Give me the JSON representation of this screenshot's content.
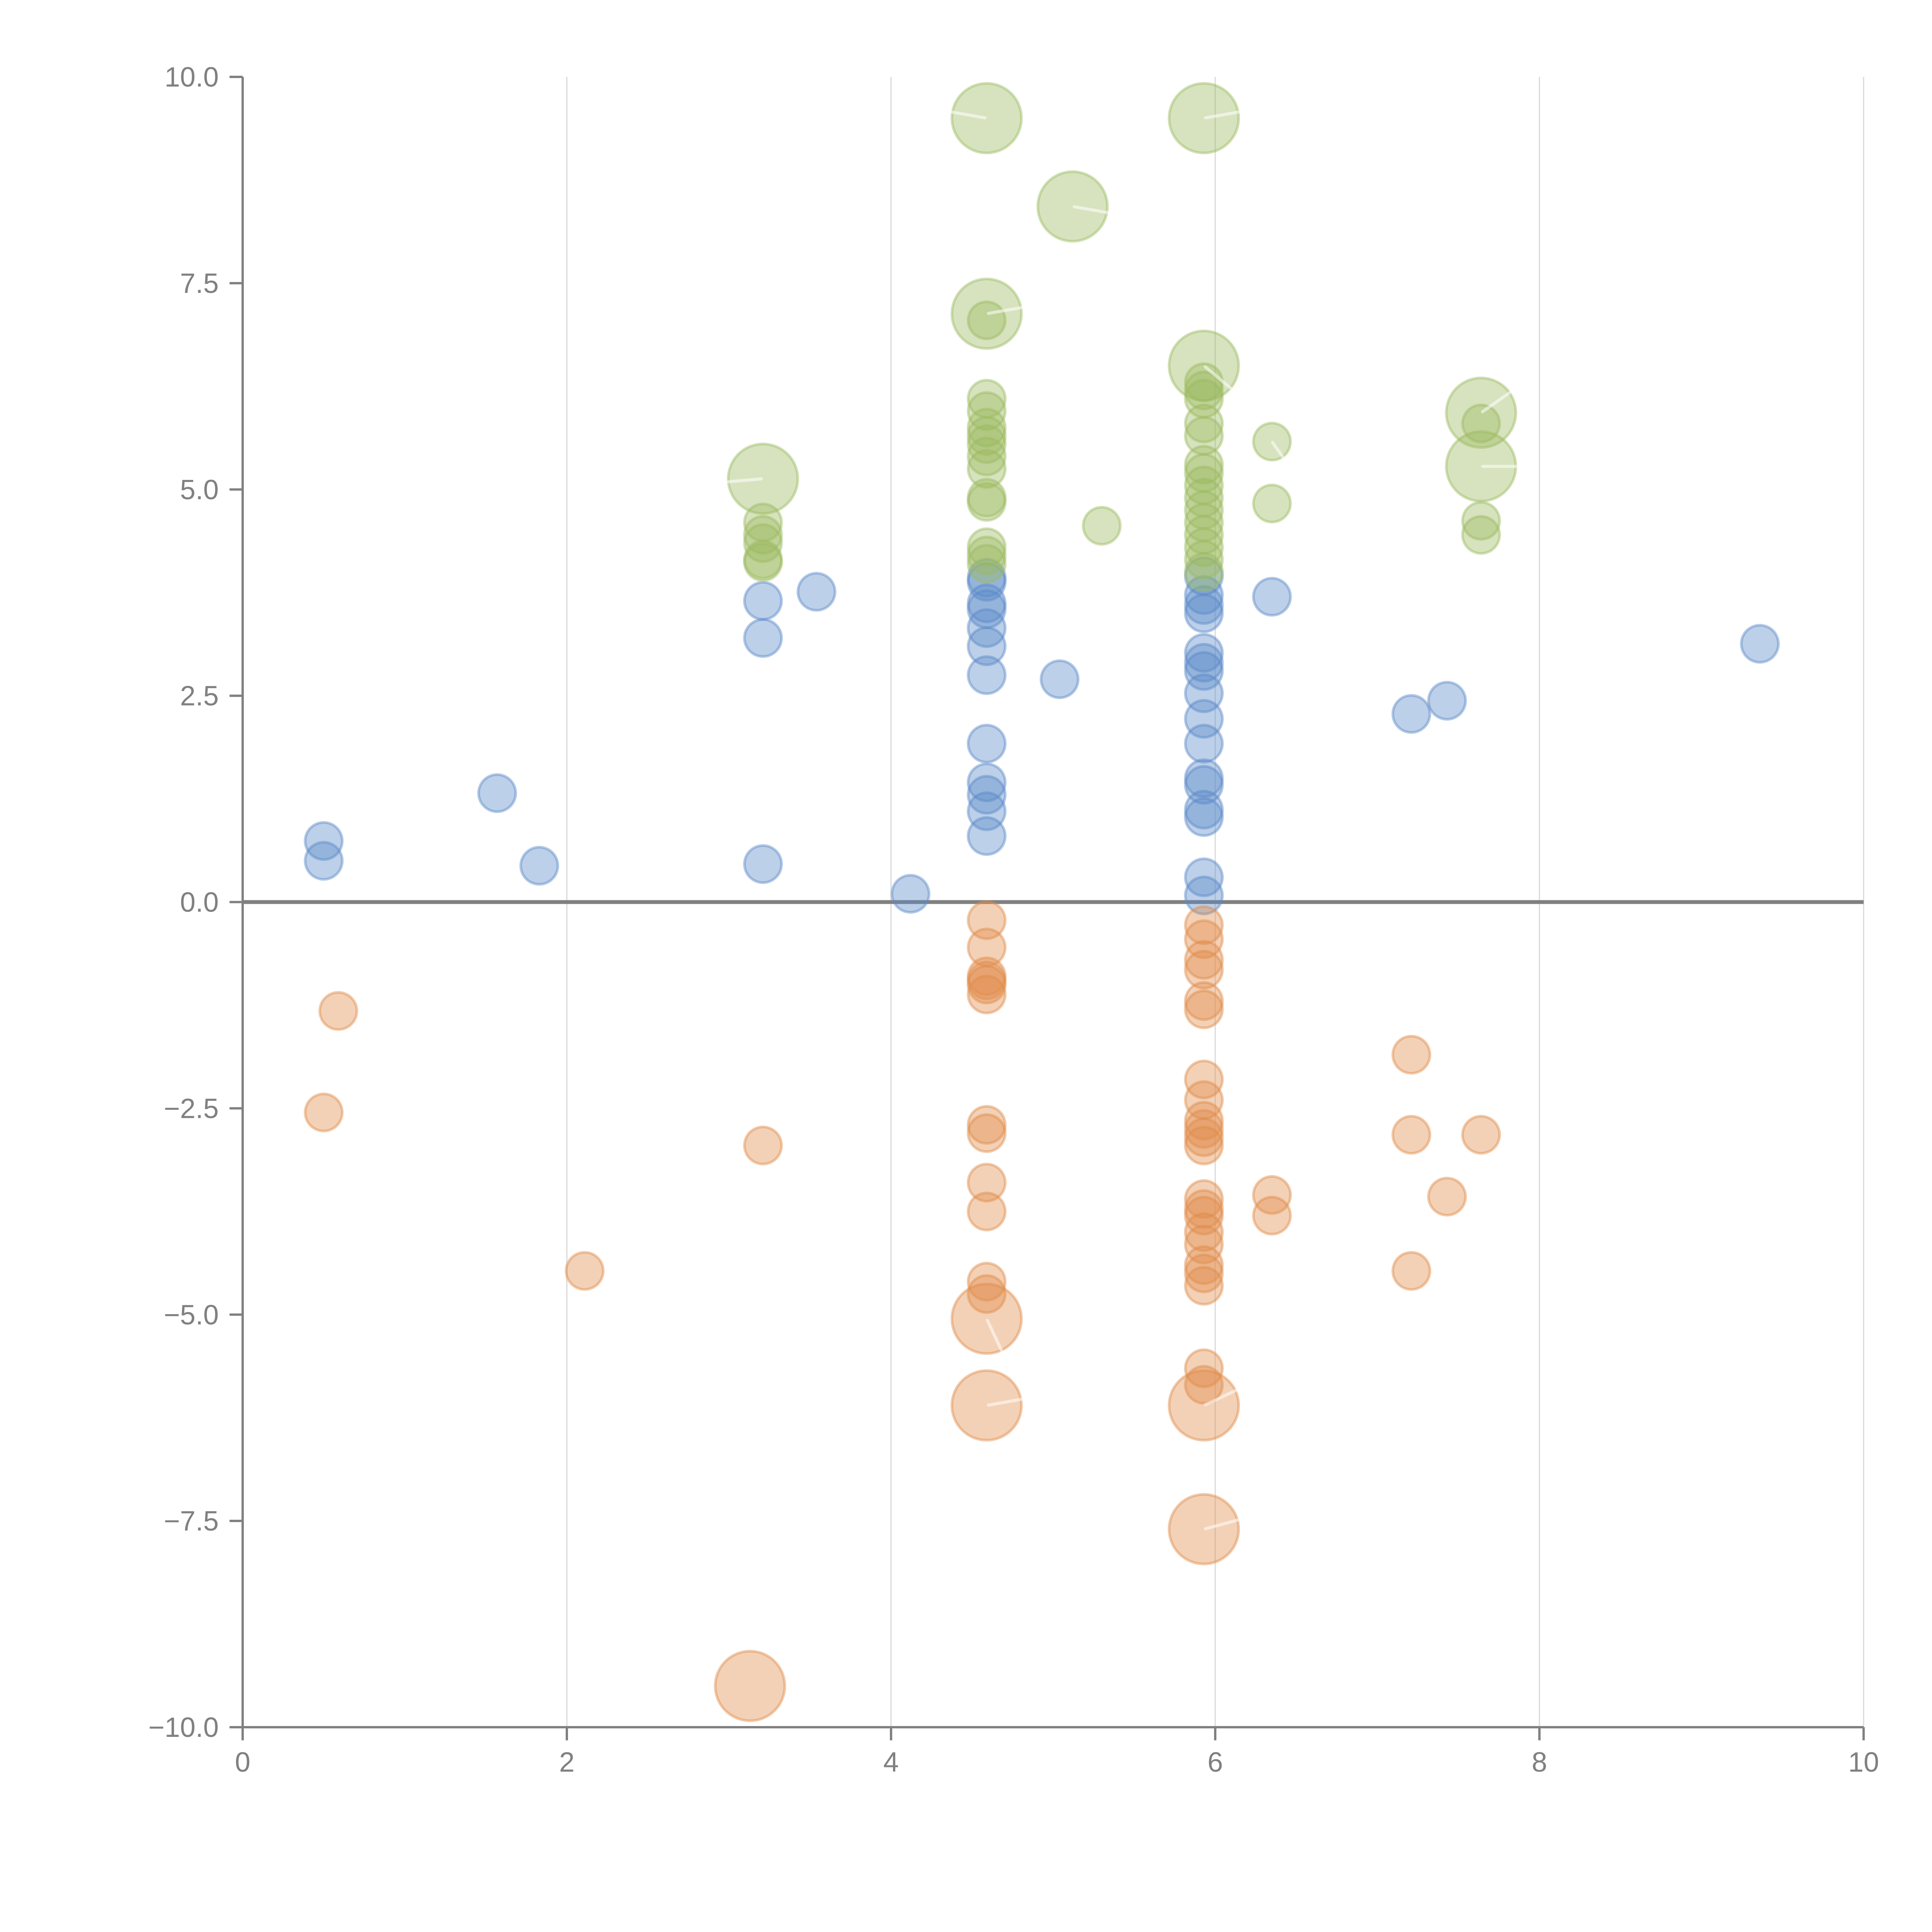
{
  "chart_data": {
    "type": "scatter",
    "variant": "bubble",
    "title": "",
    "xlabel": "",
    "ylabel": "",
    "xlim": [
      0,
      10
    ],
    "ylim": [
      -10,
      10
    ],
    "grid": "vertical",
    "legend": "none",
    "x_ticks": [
      "0",
      "2",
      "4",
      "6",
      "8",
      "10"
    ],
    "x_tick_values": [
      0,
      2,
      4,
      6,
      8,
      10
    ],
    "y_ticks": [
      "10.0",
      "7.5",
      "5.0",
      "2.5",
      "0.0",
      "−2.5",
      "−5.0",
      "−7.5",
      "−10.0"
    ],
    "y_tick_values": [
      10,
      7.5,
      5,
      2.5,
      0,
      -2.5,
      -5,
      -7.5,
      -10
    ],
    "reference_line_y": 0,
    "series": [
      {
        "name": "blue",
        "color": "#5b8ac7",
        "points": [
          {
            "x": 0.5,
            "y": 0.74,
            "size": 1
          },
          {
            "x": 0.5,
            "y": 0.5,
            "size": 1
          },
          {
            "x": 1.57,
            "y": 1.32,
            "size": 1
          },
          {
            "x": 1.83,
            "y": 0.44,
            "size": 1
          },
          {
            "x": 3.21,
            "y": 0.46,
            "size": 1
          },
          {
            "x": 3.21,
            "y": 3.2,
            "size": 1
          },
          {
            "x": 3.21,
            "y": 3.65,
            "size": 1
          },
          {
            "x": 3.54,
            "y": 3.76,
            "size": 1
          },
          {
            "x": 4.12,
            "y": 0.1,
            "size": 1
          },
          {
            "x": 4.59,
            "y": 0.8,
            "size": 1
          },
          {
            "x": 4.59,
            "y": 1.1,
            "size": 1
          },
          {
            "x": 4.59,
            "y": 1.3,
            "size": 1
          },
          {
            "x": 4.59,
            "y": 1.45,
            "size": 1
          },
          {
            "x": 4.59,
            "y": 1.92,
            "size": 1
          },
          {
            "x": 4.59,
            "y": 2.75,
            "size": 1
          },
          {
            "x": 4.59,
            "y": 3.1,
            "size": 1
          },
          {
            "x": 4.59,
            "y": 3.32,
            "size": 1
          },
          {
            "x": 4.59,
            "y": 3.55,
            "size": 1
          },
          {
            "x": 4.59,
            "y": 3.62,
            "size": 1
          },
          {
            "x": 4.59,
            "y": 3.88,
            "size": 1
          },
          {
            "x": 4.59,
            "y": 3.93,
            "size": 1
          },
          {
            "x": 5.04,
            "y": 2.7,
            "size": 1
          },
          {
            "x": 5.93,
            "y": 0.08,
            "size": 1
          },
          {
            "x": 5.93,
            "y": 0.3,
            "size": 1
          },
          {
            "x": 5.93,
            "y": 1.03,
            "size": 1
          },
          {
            "x": 5.93,
            "y": 1.12,
            "size": 1
          },
          {
            "x": 5.93,
            "y": 1.42,
            "size": 1
          },
          {
            "x": 5.93,
            "y": 1.5,
            "size": 1
          },
          {
            "x": 5.93,
            "y": 1.92,
            "size": 1
          },
          {
            "x": 5.93,
            "y": 2.22,
            "size": 1
          },
          {
            "x": 5.93,
            "y": 2.53,
            "size": 1
          },
          {
            "x": 5.93,
            "y": 2.8,
            "size": 1
          },
          {
            "x": 5.93,
            "y": 2.9,
            "size": 1
          },
          {
            "x": 5.93,
            "y": 3.02,
            "size": 1
          },
          {
            "x": 5.93,
            "y": 3.5,
            "size": 1
          },
          {
            "x": 5.93,
            "y": 3.6,
            "size": 1
          },
          {
            "x": 5.93,
            "y": 3.72,
            "size": 1
          },
          {
            "x": 5.93,
            "y": 3.95,
            "size": 1
          },
          {
            "x": 6.35,
            "y": 3.7,
            "size": 1
          },
          {
            "x": 7.21,
            "y": 2.28,
            "size": 1
          },
          {
            "x": 7.43,
            "y": 2.44,
            "size": 1
          },
          {
            "x": 9.36,
            "y": 3.13,
            "size": 1
          }
        ]
      },
      {
        "name": "green",
        "color": "#9cba5f",
        "points": [
          {
            "x": 3.21,
            "y": 4.12,
            "size": 1
          },
          {
            "x": 3.21,
            "y": 4.15,
            "size": 1
          },
          {
            "x": 3.21,
            "y": 4.35,
            "size": 1
          },
          {
            "x": 3.21,
            "y": 4.45,
            "size": 1
          },
          {
            "x": 3.21,
            "y": 4.6,
            "size": 1
          },
          {
            "x": 4.59,
            "y": 4.1,
            "size": 1
          },
          {
            "x": 4.59,
            "y": 4.2,
            "size": 1
          },
          {
            "x": 4.59,
            "y": 4.3,
            "size": 1
          },
          {
            "x": 4.59,
            "y": 4.85,
            "size": 1
          },
          {
            "x": 4.59,
            "y": 4.9,
            "size": 1
          },
          {
            "x": 4.59,
            "y": 5.25,
            "size": 1
          },
          {
            "x": 4.59,
            "y": 5.4,
            "size": 1
          },
          {
            "x": 4.59,
            "y": 5.55,
            "size": 1
          },
          {
            "x": 4.59,
            "y": 5.65,
            "size": 1
          },
          {
            "x": 4.59,
            "y": 5.75,
            "size": 1
          },
          {
            "x": 4.59,
            "y": 5.95,
            "size": 1
          },
          {
            "x": 4.59,
            "y": 6.1,
            "size": 1
          },
          {
            "x": 4.59,
            "y": 7.05,
            "size": 1
          },
          {
            "x": 5.3,
            "y": 4.56,
            "size": 1
          },
          {
            "x": 5.93,
            "y": 4.0,
            "size": 1
          },
          {
            "x": 5.93,
            "y": 4.15,
            "size": 1
          },
          {
            "x": 5.93,
            "y": 4.3,
            "size": 1
          },
          {
            "x": 5.93,
            "y": 4.45,
            "size": 1
          },
          {
            "x": 5.93,
            "y": 4.6,
            "size": 1
          },
          {
            "x": 5.93,
            "y": 4.75,
            "size": 1
          },
          {
            "x": 5.93,
            "y": 4.9,
            "size": 1
          },
          {
            "x": 5.93,
            "y": 5.05,
            "size": 1
          },
          {
            "x": 5.93,
            "y": 5.2,
            "size": 1
          },
          {
            "x": 5.93,
            "y": 5.3,
            "size": 1
          },
          {
            "x": 5.93,
            "y": 5.65,
            "size": 1
          },
          {
            "x": 5.93,
            "y": 5.8,
            "size": 1
          },
          {
            "x": 5.93,
            "y": 6.1,
            "size": 1
          },
          {
            "x": 5.93,
            "y": 6.2,
            "size": 1
          },
          {
            "x": 5.93,
            "y": 6.3,
            "size": 1
          },
          {
            "x": 6.35,
            "y": 4.83,
            "size": 1
          },
          {
            "x": 6.35,
            "y": 5.58,
            "size": 1,
            "needle": -55
          },
          {
            "x": 7.64,
            "y": 4.45,
            "size": 1
          },
          {
            "x": 7.64,
            "y": 4.62,
            "size": 1
          },
          {
            "x": 7.64,
            "y": 5.8,
            "size": 1
          },
          {
            "x": 3.21,
            "y": 5.13,
            "size": 2,
            "needle": 185
          },
          {
            "x": 4.59,
            "y": 9.5,
            "size": 2,
            "needle": 170
          },
          {
            "x": 4.59,
            "y": 7.13,
            "size": 2,
            "needle": 10
          },
          {
            "x": 5.12,
            "y": 8.43,
            "size": 2,
            "needle": -10
          },
          {
            "x": 5.93,
            "y": 9.5,
            "size": 2,
            "needle": 10
          },
          {
            "x": 5.93,
            "y": 6.5,
            "size": 2,
            "needle": -40
          },
          {
            "x": 7.64,
            "y": 5.93,
            "size": 2,
            "needle": 35
          },
          {
            "x": 7.64,
            "y": 5.28,
            "size": 2,
            "needle": 0
          }
        ]
      },
      {
        "name": "orange",
        "color": "#e08c4a",
        "points": [
          {
            "x": 0.59,
            "y": -1.32,
            "size": 1
          },
          {
            "x": 0.5,
            "y": -2.55,
            "size": 1
          },
          {
            "x": 2.11,
            "y": -4.47,
            "size": 1
          },
          {
            "x": 3.21,
            "y": -2.95,
            "size": 1
          },
          {
            "x": 4.59,
            "y": -0.22,
            "size": 1
          },
          {
            "x": 4.59,
            "y": -0.55,
            "size": 1
          },
          {
            "x": 4.59,
            "y": -0.9,
            "size": 1
          },
          {
            "x": 4.59,
            "y": -0.95,
            "size": 1
          },
          {
            "x": 4.59,
            "y": -1.0,
            "size": 1
          },
          {
            "x": 4.59,
            "y": -1.12,
            "size": 1
          },
          {
            "x": 4.59,
            "y": -2.7,
            "size": 1
          },
          {
            "x": 4.59,
            "y": -2.8,
            "size": 1
          },
          {
            "x": 4.59,
            "y": -3.4,
            "size": 1
          },
          {
            "x": 4.59,
            "y": -3.75,
            "size": 1
          },
          {
            "x": 4.59,
            "y": -4.6,
            "size": 1
          },
          {
            "x": 4.59,
            "y": -4.75,
            "size": 1
          },
          {
            "x": 5.93,
            "y": -0.28,
            "size": 1
          },
          {
            "x": 5.93,
            "y": -0.45,
            "size": 1
          },
          {
            "x": 5.93,
            "y": -0.7,
            "size": 1
          },
          {
            "x": 5.93,
            "y": -0.82,
            "size": 1
          },
          {
            "x": 5.93,
            "y": -1.2,
            "size": 1
          },
          {
            "x": 5.93,
            "y": -1.3,
            "size": 1
          },
          {
            "x": 5.93,
            "y": -2.15,
            "size": 1
          },
          {
            "x": 5.93,
            "y": -2.4,
            "size": 1
          },
          {
            "x": 5.93,
            "y": -2.65,
            "size": 1
          },
          {
            "x": 5.93,
            "y": -2.75,
            "size": 1
          },
          {
            "x": 5.93,
            "y": -2.85,
            "size": 1
          },
          {
            "x": 5.93,
            "y": -2.95,
            "size": 1
          },
          {
            "x": 5.93,
            "y": -3.6,
            "size": 1
          },
          {
            "x": 5.93,
            "y": -3.72,
            "size": 1
          },
          {
            "x": 5.93,
            "y": -3.8,
            "size": 1
          },
          {
            "x": 5.93,
            "y": -4.0,
            "size": 1
          },
          {
            "x": 5.93,
            "y": -4.15,
            "size": 1
          },
          {
            "x": 5.93,
            "y": -4.4,
            "size": 1
          },
          {
            "x": 5.93,
            "y": -4.5,
            "size": 1
          },
          {
            "x": 5.93,
            "y": -4.65,
            "size": 1
          },
          {
            "x": 5.93,
            "y": -5.65,
            "size": 1
          },
          {
            "x": 5.93,
            "y": -5.85,
            "size": 1
          },
          {
            "x": 6.35,
            "y": -3.55,
            "size": 1
          },
          {
            "x": 6.35,
            "y": -3.8,
            "size": 1
          },
          {
            "x": 7.21,
            "y": -1.85,
            "size": 1
          },
          {
            "x": 7.21,
            "y": -2.82,
            "size": 1
          },
          {
            "x": 7.21,
            "y": -4.47,
            "size": 1
          },
          {
            "x": 7.43,
            "y": -3.57,
            "size": 1
          },
          {
            "x": 7.64,
            "y": -2.82,
            "size": 1
          },
          {
            "x": 4.59,
            "y": -5.05,
            "size": 2,
            "needle": -65
          },
          {
            "x": 4.59,
            "y": -6.1,
            "size": 2,
            "needle": 10
          },
          {
            "x": 5.93,
            "y": -6.1,
            "size": 2,
            "needle": 25
          },
          {
            "x": 5.93,
            "y": -7.6,
            "size": 2,
            "needle": 15
          },
          {
            "x": 3.13,
            "y": -9.5,
            "size": 2
          }
        ]
      }
    ]
  }
}
